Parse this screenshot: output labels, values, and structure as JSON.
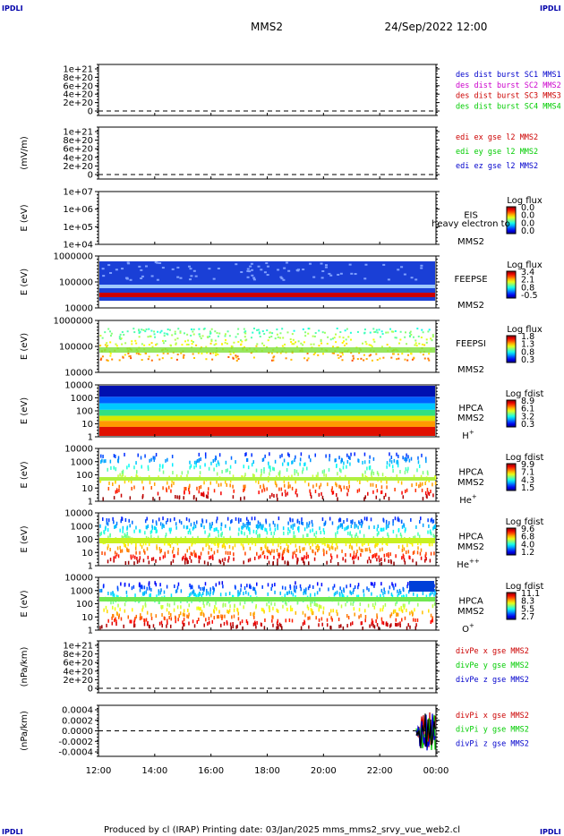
{
  "corner_logo": "IPDLI",
  "header": {
    "title": "MMS2",
    "date": "24/Sep/2022 12:00"
  },
  "footer": "Produced by cl (IRAP)   Printing date: 03/Jan/2025   mms_mms2_srvy_vue_web2.cl",
  "time_axis": {
    "ticks": [
      "12:00",
      "14:00",
      "16:00",
      "18:00",
      "20:00",
      "22:00",
      "00:00"
    ]
  },
  "panels": [
    {
      "id": "dist",
      "ylabel": "",
      "yticks": [
        "1e+21",
        "8e+20",
        "6e+20",
        "4e+20",
        "2e+20",
        "0"
      ],
      "log": false,
      "legend": [
        {
          "text": "des dist burst SC1 MMS1",
          "color": "#0000cc"
        },
        {
          "text": "des dist burst SC2 MMS2",
          "color": "#cc00cc"
        },
        {
          "text": "des dist burst SC3 MMS3",
          "color": "#cc0000"
        },
        {
          "text": "des dist burst SC4 MMS4",
          "color": "#00cc00"
        }
      ]
    },
    {
      "id": "edi",
      "ylabel": "(mV/m)",
      "yticks": [
        "1e+21",
        "8e+20",
        "6e+20",
        "4e+20",
        "2e+20",
        "0"
      ],
      "log": false,
      "legend": [
        {
          "text": "edi ex gse l2 MMS2",
          "color": "#cc0000"
        },
        {
          "text": "edi ey gse l2 MMS2",
          "color": "#00cc00"
        },
        {
          "text": "edi ez gse l2 MMS2",
          "color": "#0000cc"
        }
      ]
    },
    {
      "id": "eis",
      "ylabel": "E (eV)",
      "yticks": [
        "1e+07",
        "1e+06",
        "1e+05",
        "1e+04"
      ],
      "log": true,
      "instrument": [
        "EIS",
        "MMS2"
      ],
      "overlay": "heavy electron to",
      "colorbar": {
        "title": "Log flux",
        "labels": [
          "0.0",
          "0.0",
          "0.0",
          "0.0"
        ]
      }
    },
    {
      "id": "feepse",
      "ylabel": "E (eV)",
      "yticks": [
        "1000000",
        "100000",
        "10000"
      ],
      "log": true,
      "instrument": [
        "FEEPSE",
        "MMS2"
      ],
      "colorbar": {
        "title": "Log flux",
        "labels": [
          "3.4",
          "2.1",
          "0.8",
          "-0.5"
        ]
      }
    },
    {
      "id": "feepsi",
      "ylabel": "E (eV)",
      "yticks": [
        "1000000",
        "100000",
        "10000"
      ],
      "log": true,
      "instrument": [
        "FEEPSI",
        "MMS2"
      ],
      "colorbar": {
        "title": "Log flux",
        "labels": [
          "1.8",
          "1.3",
          "0.8",
          "0.3"
        ]
      }
    },
    {
      "id": "hpca_h",
      "ylabel": "E (eV)",
      "yticks": [
        "10000",
        "1000",
        "100",
        "10",
        "1"
      ],
      "log": true,
      "instrument": [
        "HPCA",
        "MMS2"
      ],
      "species": "H",
      "species_sup": "+",
      "colorbar": {
        "title": "Log fdist",
        "labels": [
          "8.9",
          "6.1",
          "3.2",
          "0.3"
        ]
      }
    },
    {
      "id": "hpca_he",
      "ylabel": "E (eV)",
      "yticks": [
        "10000",
        "1000",
        "100",
        "10",
        "1"
      ],
      "log": true,
      "instrument": [
        "HPCA",
        "MMS2"
      ],
      "species": "He",
      "species_sup": "+",
      "colorbar": {
        "title": "Log fdist",
        "labels": [
          "9.9",
          "7.1",
          "4.3",
          "1.5"
        ]
      }
    },
    {
      "id": "hpca_hepp",
      "ylabel": "E (eV)",
      "yticks": [
        "10000",
        "1000",
        "100",
        "10",
        "1"
      ],
      "log": true,
      "instrument": [
        "HPCA",
        "MMS2"
      ],
      "species": "He",
      "species_sup": "++",
      "colorbar": {
        "title": "Log fdist",
        "labels": [
          "9.6",
          "6.8",
          "4.0",
          "1.2"
        ]
      }
    },
    {
      "id": "hpca_o",
      "ylabel": "E (eV)",
      "yticks": [
        "10000",
        "1000",
        "100",
        "10",
        "1"
      ],
      "log": true,
      "instrument": [
        "HPCA",
        "MMS2"
      ],
      "species": "O",
      "species_sup": "+",
      "colorbar": {
        "title": "Log fdist",
        "labels": [
          "11.1",
          "8.3",
          "5.5",
          "2.7"
        ]
      }
    },
    {
      "id": "divpe",
      "ylabel": "(nPa/km)",
      "yticks": [
        "1e+21",
        "8e+20",
        "6e+20",
        "4e+20",
        "2e+20",
        "0"
      ],
      "log": false,
      "legend": [
        {
          "text": "divPe x gse MMS2",
          "color": "#cc0000"
        },
        {
          "text": "divPe y gse MMS2",
          "color": "#00cc00"
        },
        {
          "text": "divPe z gse MMS2",
          "color": "#0000cc"
        }
      ]
    },
    {
      "id": "divpi",
      "ylabel": "(nPa/km)",
      "yticks": [
        "0.0004",
        "0.0002",
        "0.0000",
        "-0.0002",
        "-0.0004"
      ],
      "log": false,
      "legend": [
        {
          "text": "divPi x gse MMS2",
          "color": "#cc0000"
        },
        {
          "text": "divPi y gse MMS2",
          "color": "#00cc00"
        },
        {
          "text": "divPi z gse MMS2",
          "color": "#0000cc"
        }
      ]
    }
  ],
  "chart_data": {
    "type": "heatmap",
    "title": "MMS2",
    "x_range": [
      "12:00",
      "00:00"
    ],
    "panels": [
      {
        "name": "dist",
        "dashed_zero": true,
        "ylim": [
          0,
          1e+21
        ]
      },
      {
        "name": "edi",
        "dashed_zero": true,
        "ylim": [
          0,
          1e+21
        ]
      },
      {
        "name": "EIS",
        "ylim": [
          10000.0,
          10000000.0
        ],
        "scale": "log",
        "data": "none"
      },
      {
        "name": "FEEPSE",
        "ylim": [
          10000.0,
          1000000.0
        ],
        "scale": "log",
        "clim": [
          -0.5,
          3.4
        ],
        "profile": [
          {
            "E": 30000,
            "value": 3.4
          },
          {
            "E": 40000,
            "value": 2.2
          },
          {
            "E": 100000,
            "value": 0.9
          },
          {
            "E": 800000,
            "value": 0.2
          }
        ]
      },
      {
        "name": "FEEPSI",
        "ylim": [
          10000.0,
          1000000.0
        ],
        "scale": "log",
        "clim": [
          0.3,
          1.8
        ],
        "profile": [
          {
            "E": 50000,
            "value": 1.5
          },
          {
            "E": 100000,
            "value": 1.2
          },
          {
            "E": 300000,
            "value": 0.7
          }
        ]
      },
      {
        "name": "HPCA H+",
        "ylim": [
          1,
          30000
        ],
        "scale": "log",
        "clim": [
          0.3,
          8.9
        ],
        "profile": [
          {
            "E": 3,
            "value": 8.9
          },
          {
            "E": 30,
            "value": 7.5
          },
          {
            "E": 300,
            "value": 5.2
          },
          {
            "E": 3000,
            "value": 3.0
          },
          {
            "E": 20000,
            "value": 1.0
          }
        ]
      },
      {
        "name": "HPCA He+",
        "ylim": [
          1,
          30000
        ],
        "scale": "log",
        "clim": [
          1.5,
          9.9
        ],
        "profile": [
          {
            "E": 300,
            "value": 6.5
          },
          {
            "E": 100,
            "value": 5.5
          },
          {
            "E": 3000,
            "value": 4.0
          }
        ]
      },
      {
        "name": "HPCA He++",
        "ylim": [
          1,
          30000
        ],
        "scale": "log",
        "clim": [
          1.2,
          9.6
        ],
        "profile": [
          {
            "E": 100,
            "value": 6.5
          },
          {
            "E": 1000,
            "value": 4.5
          },
          {
            "E": 10000,
            "value": 2.5
          }
        ]
      },
      {
        "name": "HPCA O+",
        "ylim": [
          1,
          30000
        ],
        "scale": "log",
        "clim": [
          2.7,
          11.1
        ],
        "profile": [
          {
            "E": 1000,
            "value": 7.5
          },
          {
            "E": 100,
            "value": 8.5
          },
          {
            "E": 10000,
            "value": 4.5
          }
        ]
      },
      {
        "name": "divPe",
        "dashed_zero": true,
        "ylim": [
          0,
          1e+21
        ]
      },
      {
        "name": "divPi",
        "ylim": [
          -0.0004,
          0.0004
        ],
        "dashed_zero": true,
        "burst_window": [
          "23:20",
          "23:59"
        ],
        "amplitude": 0.00035
      }
    ]
  }
}
